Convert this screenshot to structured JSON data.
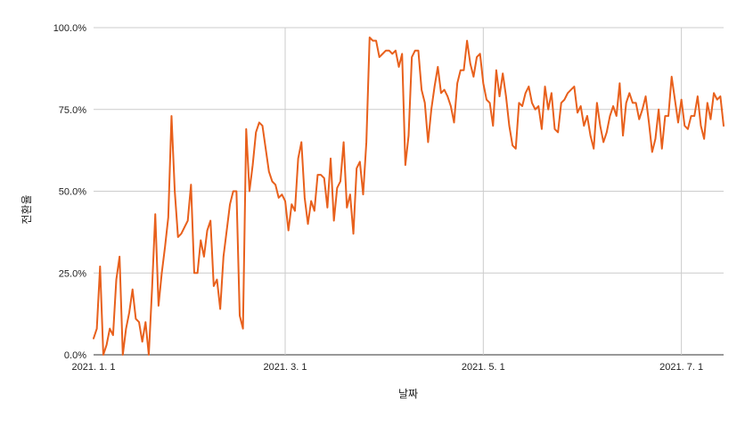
{
  "chart_data": {
    "type": "line",
    "title": "",
    "xlabel": "날짜",
    "ylabel": "전환율",
    "x_start": "2021-01-01",
    "x_end": "2021-07-14",
    "xlim_days": [
      0,
      194
    ],
    "ylim": [
      0,
      100
    ],
    "y_ticks": [
      {
        "value": 0,
        "label": "0.0%"
      },
      {
        "value": 25,
        "label": "25.0%"
      },
      {
        "value": 50,
        "label": "50.0%"
      },
      {
        "value": 75,
        "label": "75.0%"
      },
      {
        "value": 100,
        "label": "100.0%"
      }
    ],
    "x_ticks": [
      {
        "date": "2021-01-01",
        "label": "2021. 1. 1"
      },
      {
        "date": "2021-03-01",
        "label": "2021. 3. 1"
      },
      {
        "date": "2021-05-01",
        "label": "2021. 5. 1"
      },
      {
        "date": "2021-07-01",
        "label": "2021. 7. 1"
      }
    ],
    "grid": true,
    "legend": "none",
    "series": [
      {
        "color": "#e8601c",
        "values": [
          5,
          8,
          27,
          0,
          3,
          8,
          6,
          23,
          30,
          0,
          8,
          13,
          20,
          11,
          10,
          4,
          10,
          0,
          20,
          43,
          15,
          25,
          33,
          42,
          73,
          50,
          36,
          37,
          39,
          41,
          52,
          25,
          25,
          35,
          30,
          38,
          41,
          21,
          23,
          14,
          30,
          38,
          46,
          50,
          50,
          12,
          8,
          69,
          50,
          58,
          68,
          71,
          70,
          63,
          56,
          53,
          52,
          48,
          49,
          47,
          38,
          46,
          44,
          60,
          65,
          48,
          40,
          47,
          44,
          55,
          55,
          54,
          45,
          60,
          41,
          51,
          53,
          65,
          45,
          49,
          37,
          57,
          59,
          49,
          65,
          97,
          96,
          96,
          91,
          92,
          93,
          93,
          92,
          93,
          88,
          92,
          58,
          67,
          91,
          93,
          93,
          81,
          77,
          65,
          75,
          82,
          88,
          80,
          81,
          79,
          76,
          71,
          83,
          87,
          87,
          96,
          89,
          85,
          91,
          92,
          83,
          78,
          77,
          70,
          87,
          79,
          86,
          79,
          70,
          64,
          63,
          77,
          76,
          80,
          82,
          77,
          75,
          76,
          69,
          82,
          75,
          80,
          69,
          68,
          77,
          78,
          80,
          81,
          82,
          74,
          76,
          70,
          73,
          67,
          63,
          77,
          70,
          65,
          68,
          73,
          76,
          73,
          83,
          67,
          77,
          80,
          77,
          77,
          72,
          75,
          79,
          71,
          62,
          66,
          75,
          63,
          73,
          73,
          85,
          78,
          71,
          78,
          70,
          69,
          73,
          73,
          79,
          70,
          66,
          77,
          72,
          80,
          78,
          79,
          70
        ]
      }
    ]
  }
}
